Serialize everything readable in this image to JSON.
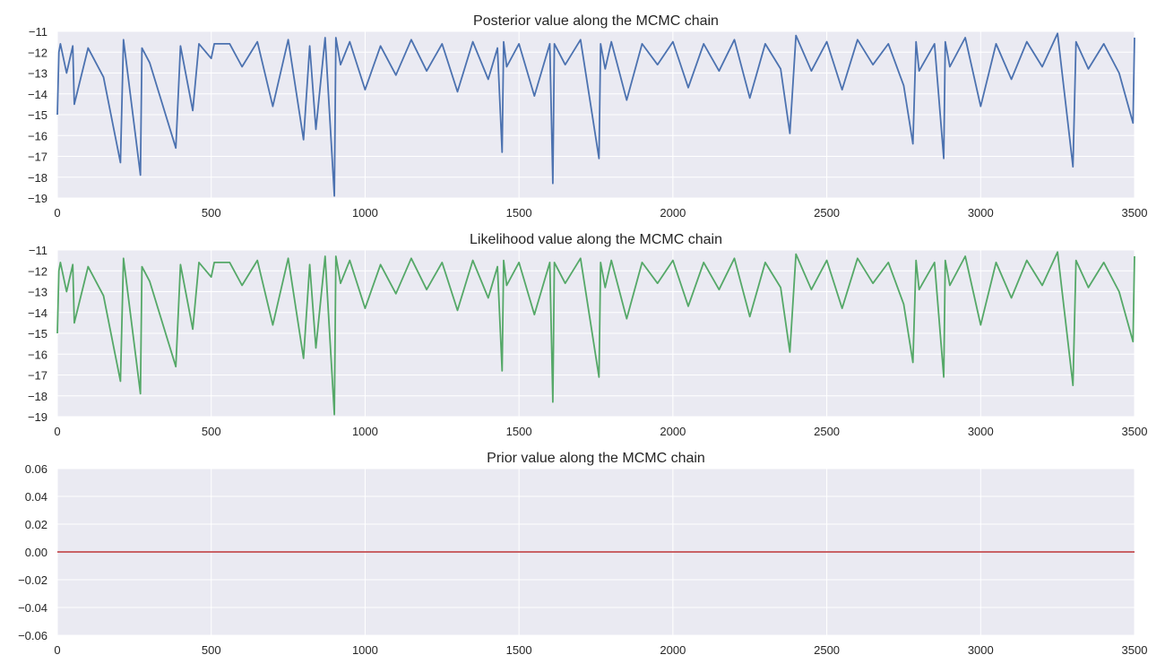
{
  "chart_data": [
    {
      "type": "line",
      "title": "Posterior value along the MCMC chain",
      "xlabel": "",
      "ylabel": "",
      "xlim": [
        0,
        3500
      ],
      "ylim": [
        -19,
        -11
      ],
      "xticks": [
        0,
        500,
        1000,
        1500,
        2000,
        2500,
        3000,
        3500
      ],
      "xtick_labels": [
        "0",
        "500",
        "1000",
        "1500",
        "2000",
        "2500",
        "3000",
        "3500"
      ],
      "yticks": [
        -19,
        -18,
        -17,
        -16,
        -15,
        -14,
        -13,
        -12,
        -11
      ],
      "ytick_labels": [
        "−19",
        "−18",
        "−17",
        "−16",
        "−15",
        "−14",
        "−13",
        "−12",
        "−11"
      ],
      "grid": true,
      "color": "#4c72b0",
      "series": [
        {
          "x": [
            0,
            5,
            10,
            30,
            50,
            55,
            100,
            150,
            205,
            215,
            270,
            275,
            300,
            385,
            400,
            440,
            460,
            500,
            510,
            515,
            520,
            560,
            600,
            650,
            700,
            750,
            800,
            820,
            840,
            870,
            900,
            905,
            920,
            950,
            1000,
            1050,
            1100,
            1150,
            1200,
            1250,
            1300,
            1350,
            1400,
            1430,
            1445,
            1450,
            1460,
            1500,
            1550,
            1600,
            1610,
            1615,
            1650,
            1700,
            1760,
            1765,
            1780,
            1800,
            1850,
            1900,
            1950,
            2000,
            2050,
            2100,
            2150,
            2200,
            2250,
            2300,
            2350,
            2380,
            2400,
            2450,
            2500,
            2550,
            2600,
            2650,
            2700,
            2750,
            2780,
            2790,
            2800,
            2850,
            2880,
            2885,
            2900,
            2950,
            3000,
            3050,
            3100,
            3150,
            3200,
            3250,
            3300,
            3310,
            3350,
            3400,
            3450,
            3495,
            3500
          ],
          "y": [
            -15.0,
            -12.0,
            -11.6,
            -13.0,
            -11.7,
            -14.5,
            -11.8,
            -13.2,
            -17.3,
            -11.4,
            -17.9,
            -11.8,
            -12.5,
            -16.6,
            -11.7,
            -14.8,
            -11.6,
            -12.3,
            -11.6,
            -11.6,
            -11.6,
            -11.6,
            -12.7,
            -11.5,
            -14.6,
            -11.4,
            -16.2,
            -11.7,
            -15.7,
            -11.3,
            -18.9,
            -11.3,
            -12.6,
            -11.5,
            -13.8,
            -11.7,
            -13.1,
            -11.4,
            -12.9,
            -11.6,
            -13.9,
            -11.5,
            -13.3,
            -11.8,
            -16.8,
            -11.5,
            -12.7,
            -11.6,
            -14.1,
            -11.6,
            -18.3,
            -11.6,
            -12.6,
            -11.4,
            -17.1,
            -11.6,
            -12.8,
            -11.5,
            -14.3,
            -11.6,
            -12.6,
            -11.5,
            -13.7,
            -11.6,
            -12.9,
            -11.4,
            -14.2,
            -11.6,
            -12.8,
            -15.9,
            -11.2,
            -12.9,
            -11.5,
            -13.8,
            -11.4,
            -12.6,
            -11.6,
            -13.6,
            -16.4,
            -11.5,
            -12.9,
            -11.6,
            -17.1,
            -11.5,
            -12.7,
            -11.3,
            -14.6,
            -11.6,
            -13.3,
            -11.5,
            -12.7,
            -11.1,
            -17.5,
            -11.5,
            -12.8,
            -11.6,
            -13.0,
            -15.4,
            -11.3
          ]
        }
      ]
    },
    {
      "type": "line",
      "title": "Likelihood value along the MCMC chain",
      "xlabel": "",
      "ylabel": "",
      "xlim": [
        0,
        3500
      ],
      "ylim": [
        -19,
        -11
      ],
      "xticks": [
        0,
        500,
        1000,
        1500,
        2000,
        2500,
        3000,
        3500
      ],
      "xtick_labels": [
        "0",
        "500",
        "1000",
        "1500",
        "2000",
        "2500",
        "3000",
        "3500"
      ],
      "yticks": [
        -19,
        -18,
        -17,
        -16,
        -15,
        -14,
        -13,
        -12,
        -11
      ],
      "ytick_labels": [
        "−19",
        "−18",
        "−17",
        "−16",
        "−15",
        "−14",
        "−13",
        "−12",
        "−11"
      ],
      "grid": true,
      "color": "#55a868",
      "series": [
        {
          "x": [
            0,
            5,
            10,
            30,
            50,
            55,
            100,
            150,
            205,
            215,
            270,
            275,
            300,
            385,
            400,
            440,
            460,
            500,
            510,
            515,
            520,
            560,
            600,
            650,
            700,
            750,
            800,
            820,
            840,
            870,
            900,
            905,
            920,
            950,
            1000,
            1050,
            1100,
            1150,
            1200,
            1250,
            1300,
            1350,
            1400,
            1430,
            1445,
            1450,
            1460,
            1500,
            1550,
            1600,
            1610,
            1615,
            1650,
            1700,
            1760,
            1765,
            1780,
            1800,
            1850,
            1900,
            1950,
            2000,
            2050,
            2100,
            2150,
            2200,
            2250,
            2300,
            2350,
            2380,
            2400,
            2450,
            2500,
            2550,
            2600,
            2650,
            2700,
            2750,
            2780,
            2790,
            2800,
            2850,
            2880,
            2885,
            2900,
            2950,
            3000,
            3050,
            3100,
            3150,
            3200,
            3250,
            3300,
            3310,
            3350,
            3400,
            3450,
            3495,
            3500
          ],
          "y": [
            -15.0,
            -12.0,
            -11.6,
            -13.0,
            -11.7,
            -14.5,
            -11.8,
            -13.2,
            -17.3,
            -11.4,
            -17.9,
            -11.8,
            -12.5,
            -16.6,
            -11.7,
            -14.8,
            -11.6,
            -12.3,
            -11.6,
            -11.6,
            -11.6,
            -11.6,
            -12.7,
            -11.5,
            -14.6,
            -11.4,
            -16.2,
            -11.7,
            -15.7,
            -11.3,
            -18.9,
            -11.3,
            -12.6,
            -11.5,
            -13.8,
            -11.7,
            -13.1,
            -11.4,
            -12.9,
            -11.6,
            -13.9,
            -11.5,
            -13.3,
            -11.8,
            -16.8,
            -11.5,
            -12.7,
            -11.6,
            -14.1,
            -11.6,
            -18.3,
            -11.6,
            -12.6,
            -11.4,
            -17.1,
            -11.6,
            -12.8,
            -11.5,
            -14.3,
            -11.6,
            -12.6,
            -11.5,
            -13.7,
            -11.6,
            -12.9,
            -11.4,
            -14.2,
            -11.6,
            -12.8,
            -15.9,
            -11.2,
            -12.9,
            -11.5,
            -13.8,
            -11.4,
            -12.6,
            -11.6,
            -13.6,
            -16.4,
            -11.5,
            -12.9,
            -11.6,
            -17.1,
            -11.5,
            -12.7,
            -11.3,
            -14.6,
            -11.6,
            -13.3,
            -11.5,
            -12.7,
            -11.1,
            -17.5,
            -11.5,
            -12.8,
            -11.6,
            -13.0,
            -15.4,
            -11.3
          ]
        }
      ]
    },
    {
      "type": "line",
      "title": "Prior value along the MCMC chain",
      "xlabel": "",
      "ylabel": "",
      "xlim": [
        0,
        3500
      ],
      "ylim": [
        -0.06,
        0.06
      ],
      "xticks": [
        0,
        500,
        1000,
        1500,
        2000,
        2500,
        3000,
        3500
      ],
      "xtick_labels": [
        "0",
        "500",
        "1000",
        "1500",
        "2000",
        "2500",
        "3000",
        "3500"
      ],
      "yticks": [
        -0.06,
        -0.04,
        -0.02,
        0.0,
        0.02,
        0.04,
        0.06
      ],
      "ytick_labels": [
        "−0.06",
        "−0.04",
        "−0.02",
        "0.00",
        "0.02",
        "0.04",
        "0.06"
      ],
      "grid": true,
      "color": "#c44e52",
      "series": [
        {
          "x": [
            0,
            3500
          ],
          "y": [
            0.0,
            0.0
          ]
        }
      ]
    }
  ],
  "style": {
    "plot_background": "#eaeaf2",
    "grid_color": "#ffffff"
  }
}
